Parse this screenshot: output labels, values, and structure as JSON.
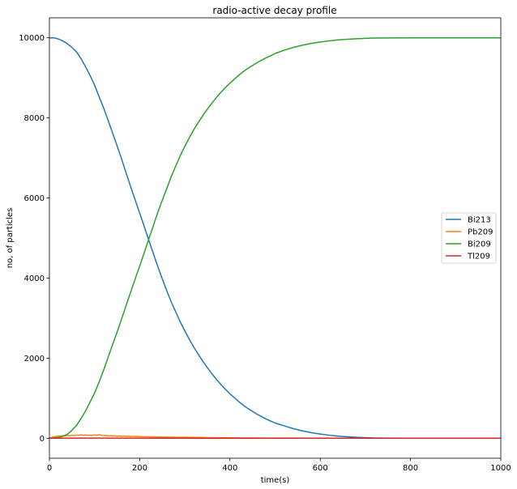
{
  "chart_data": {
    "type": "line",
    "title": "radio-active decay profile",
    "xlabel": "time(s)",
    "ylabel": "no, of particles",
    "xlim": [
      0,
      1000
    ],
    "ylim": [
      -500,
      10500
    ],
    "xticks": [
      0,
      200,
      400,
      600,
      800,
      1000
    ],
    "yticks": [
      0,
      2000,
      4000,
      6000,
      8000,
      10000
    ],
    "grid": false,
    "legend_position": "center-right",
    "series": [
      {
        "name": "Bi213",
        "color": "#1f77b4",
        "points": [
          [
            0,
            10000
          ],
          [
            10,
            10000
          ],
          [
            20,
            9970
          ],
          [
            30,
            9920
          ],
          [
            40,
            9850
          ],
          [
            50,
            9760
          ],
          [
            60,
            9650
          ],
          [
            70,
            9480
          ],
          [
            80,
            9280
          ],
          [
            90,
            9060
          ],
          [
            100,
            8820
          ],
          [
            110,
            8530
          ],
          [
            120,
            8250
          ],
          [
            130,
            7940
          ],
          [
            140,
            7620
          ],
          [
            150,
            7300
          ],
          [
            160,
            6970
          ],
          [
            170,
            6620
          ],
          [
            180,
            6280
          ],
          [
            190,
            5950
          ],
          [
            200,
            5620
          ],
          [
            210,
            5290
          ],
          [
            220,
            4950
          ],
          [
            230,
            4620
          ],
          [
            240,
            4290
          ],
          [
            250,
            3980
          ],
          [
            260,
            3680
          ],
          [
            270,
            3400
          ],
          [
            280,
            3150
          ],
          [
            290,
            2900
          ],
          [
            300,
            2680
          ],
          [
            310,
            2470
          ],
          [
            320,
            2270
          ],
          [
            330,
            2090
          ],
          [
            340,
            1920
          ],
          [
            350,
            1760
          ],
          [
            360,
            1610
          ],
          [
            370,
            1470
          ],
          [
            380,
            1340
          ],
          [
            390,
            1220
          ],
          [
            400,
            1110
          ],
          [
            410,
            1010
          ],
          [
            420,
            910
          ],
          [
            430,
            820
          ],
          [
            440,
            740
          ],
          [
            450,
            670
          ],
          [
            460,
            600
          ],
          [
            470,
            540
          ],
          [
            480,
            480
          ],
          [
            490,
            430
          ],
          [
            500,
            380
          ],
          [
            520,
            310
          ],
          [
            540,
            240
          ],
          [
            560,
            185
          ],
          [
            580,
            140
          ],
          [
            600,
            105
          ],
          [
            620,
            75
          ],
          [
            640,
            50
          ],
          [
            660,
            35
          ],
          [
            680,
            22
          ],
          [
            700,
            12
          ],
          [
            720,
            6
          ],
          [
            750,
            2
          ],
          [
            800,
            0
          ],
          [
            1000,
            0
          ]
        ]
      },
      {
        "name": "Pb209",
        "color": "#ff7f0e",
        "points": [
          [
            0,
            0
          ],
          [
            5,
            20
          ],
          [
            10,
            35
          ],
          [
            15,
            45
          ],
          [
            20,
            60
          ],
          [
            25,
            50
          ],
          [
            30,
            65
          ],
          [
            35,
            55
          ],
          [
            40,
            70
          ],
          [
            45,
            60
          ],
          [
            50,
            75
          ],
          [
            55,
            65
          ],
          [
            60,
            80
          ],
          [
            65,
            70
          ],
          [
            70,
            85
          ],
          [
            75,
            72
          ],
          [
            80,
            78
          ],
          [
            85,
            70
          ],
          [
            90,
            75
          ],
          [
            95,
            68
          ],
          [
            100,
            82
          ],
          [
            105,
            72
          ],
          [
            110,
            90
          ],
          [
            115,
            70
          ],
          [
            120,
            65
          ],
          [
            125,
            72
          ],
          [
            130,
            58
          ],
          [
            135,
            66
          ],
          [
            140,
            55
          ],
          [
            145,
            62
          ],
          [
            150,
            50
          ],
          [
            155,
            58
          ],
          [
            160,
            48
          ],
          [
            165,
            55
          ],
          [
            170,
            45
          ],
          [
            175,
            50
          ],
          [
            180,
            42
          ],
          [
            185,
            48
          ],
          [
            190,
            40
          ],
          [
            195,
            44
          ],
          [
            200,
            38
          ],
          [
            220,
            35
          ],
          [
            240,
            30
          ],
          [
            260,
            28
          ],
          [
            280,
            25
          ],
          [
            300,
            22
          ],
          [
            320,
            20
          ],
          [
            340,
            17
          ],
          [
            360,
            14
          ],
          [
            380,
            12
          ],
          [
            400,
            10
          ],
          [
            420,
            8
          ],
          [
            440,
            7
          ],
          [
            460,
            5
          ],
          [
            480,
            4
          ],
          [
            500,
            3
          ],
          [
            550,
            2
          ],
          [
            600,
            1
          ],
          [
            650,
            0
          ],
          [
            1000,
            0
          ]
        ]
      },
      {
        "name": "Bi209",
        "color": "#2ca02c",
        "points": [
          [
            0,
            0
          ],
          [
            10,
            5
          ],
          [
            20,
            20
          ],
          [
            30,
            50
          ],
          [
            40,
            100
          ],
          [
            50,
            200
          ],
          [
            60,
            320
          ],
          [
            70,
            490
          ],
          [
            80,
            680
          ],
          [
            90,
            900
          ],
          [
            100,
            1130
          ],
          [
            110,
            1400
          ],
          [
            120,
            1700
          ],
          [
            130,
            2020
          ],
          [
            140,
            2340
          ],
          [
            150,
            2650
          ],
          [
            160,
            2980
          ],
          [
            170,
            3320
          ],
          [
            180,
            3650
          ],
          [
            190,
            3980
          ],
          [
            200,
            4300
          ],
          [
            210,
            4630
          ],
          [
            220,
            4970
          ],
          [
            230,
            5300
          ],
          [
            240,
            5640
          ],
          [
            250,
            5940
          ],
          [
            260,
            6240
          ],
          [
            270,
            6540
          ],
          [
            280,
            6800
          ],
          [
            290,
            7060
          ],
          [
            300,
            7290
          ],
          [
            310,
            7510
          ],
          [
            320,
            7710
          ],
          [
            330,
            7890
          ],
          [
            340,
            8060
          ],
          [
            350,
            8220
          ],
          [
            360,
            8370
          ],
          [
            370,
            8510
          ],
          [
            380,
            8640
          ],
          [
            390,
            8760
          ],
          [
            400,
            8870
          ],
          [
            410,
            8970
          ],
          [
            420,
            9070
          ],
          [
            430,
            9160
          ],
          [
            440,
            9240
          ],
          [
            450,
            9310
          ],
          [
            460,
            9380
          ],
          [
            470,
            9440
          ],
          [
            480,
            9500
          ],
          [
            490,
            9550
          ],
          [
            500,
            9610
          ],
          [
            520,
            9690
          ],
          [
            540,
            9760
          ],
          [
            560,
            9815
          ],
          [
            580,
            9860
          ],
          [
            600,
            9895
          ],
          [
            620,
            9925
          ],
          [
            640,
            9950
          ],
          [
            660,
            9965
          ],
          [
            680,
            9978
          ],
          [
            700,
            9988
          ],
          [
            720,
            9994
          ],
          [
            750,
            9998
          ],
          [
            800,
            10000
          ],
          [
            1000,
            10000
          ]
        ]
      },
      {
        "name": "Tl209",
        "color": "#d62728",
        "points": [
          [
            0,
            0
          ],
          [
            100,
            2
          ],
          [
            200,
            1
          ],
          [
            300,
            0
          ],
          [
            1000,
            0
          ]
        ]
      }
    ]
  }
}
